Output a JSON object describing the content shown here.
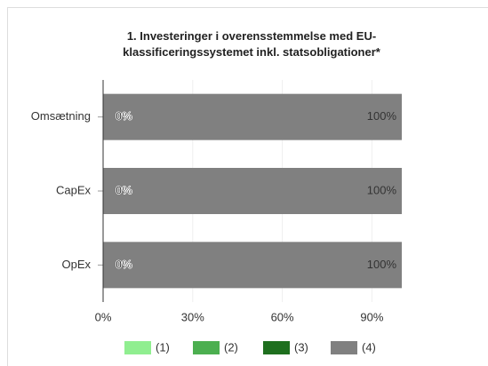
{
  "chart_data": {
    "type": "stacked_barh",
    "title": "1. Investeringer i overensstemmelse med EU-klassificeringssystemet inkl. statsobligationer*",
    "categories": [
      "Omsætning",
      "CapEx",
      "OpEx"
    ],
    "series": [
      {
        "name": "(1)",
        "color": "#90ee90",
        "values": [
          0,
          0,
          0
        ],
        "value_labels": [
          "0%",
          "0%",
          "0%"
        ]
      },
      {
        "name": "(2)",
        "color": "#4caf50",
        "values": [
          0,
          0,
          0
        ],
        "value_labels": [
          "0%",
          "0%",
          "0%"
        ]
      },
      {
        "name": "(3)",
        "color": "#1e6f1e",
        "values": [
          0,
          0,
          0
        ],
        "value_labels": [
          "0%",
          "0%",
          "0%"
        ]
      },
      {
        "name": "(4)",
        "color": "#808080",
        "values": [
          100,
          100,
          100
        ],
        "value_labels": [
          "100%",
          "100%",
          "100%"
        ]
      }
    ],
    "xlim": [
      0,
      100
    ],
    "xticks": [
      {
        "value": 0,
        "label": "0%"
      },
      {
        "value": 30,
        "label": "30%"
      },
      {
        "value": 60,
        "label": "60%"
      },
      {
        "value": 90,
        "label": "90%"
      }
    ],
    "legend": "bottom"
  }
}
